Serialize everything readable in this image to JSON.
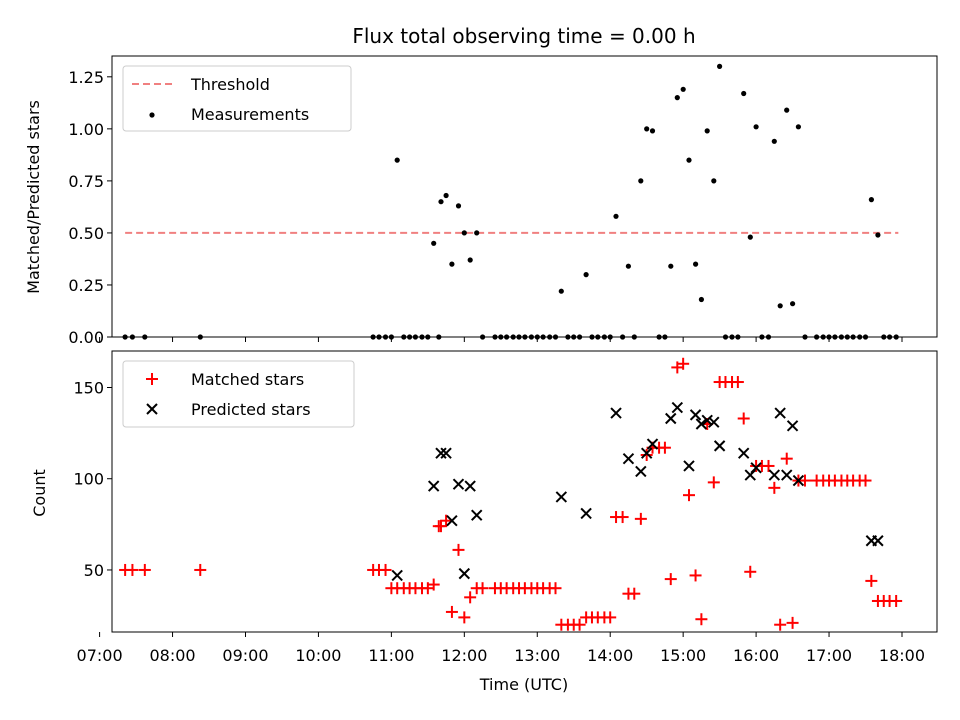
{
  "chart_data": [
    {
      "type": "scatter",
      "title": "Flux total observing time = 0.00 h",
      "xlabel": "",
      "ylabel": "Matched/Predicted stars",
      "ylim": [
        0,
        1.35
      ],
      "yticks": [
        "0.00",
        "0.25",
        "0.50",
        "0.75",
        "1.00",
        "1.25"
      ],
      "ytick_values": [
        0,
        0.25,
        0.5,
        0.75,
        1.0,
        1.25
      ],
      "legend_position": "top-left",
      "threshold": {
        "name": "Threshold",
        "value": 0.5,
        "x_start": 7.35,
        "x_end": 17.95,
        "color": "#f08080"
      },
      "series": [
        {
          "name": "Measurements",
          "marker": "dot",
          "color": "#000000",
          "x": [
            7.35,
            7.45,
            7.62,
            8.38,
            10.75,
            10.83,
            10.92,
            11.0,
            11.08,
            11.17,
            11.25,
            11.33,
            11.42,
            11.5,
            11.58,
            11.65,
            11.68,
            11.75,
            11.83,
            11.92,
            12.0,
            12.08,
            12.17,
            12.25,
            12.42,
            12.5,
            12.58,
            12.67,
            12.75,
            12.83,
            12.92,
            13.0,
            13.08,
            13.17,
            13.25,
            13.33,
            13.42,
            13.5,
            13.58,
            13.67,
            13.75,
            13.83,
            13.92,
            14.0,
            14.08,
            14.17,
            14.25,
            14.33,
            14.42,
            14.5,
            14.58,
            14.67,
            14.75,
            14.83,
            14.92,
            15.0,
            15.08,
            15.17,
            15.25,
            15.33,
            15.42,
            15.5,
            15.58,
            15.67,
            15.75,
            15.83,
            15.92,
            16.0,
            16.08,
            16.17,
            16.25,
            16.33,
            16.42,
            16.5,
            16.58,
            16.67,
            16.83,
            16.92,
            17.0,
            17.08,
            17.17,
            17.25,
            17.33,
            17.42,
            17.5,
            17.58,
            17.67,
            17.75,
            17.83,
            17.92
          ],
          "y": [
            0,
            0,
            0,
            0,
            0,
            0,
            0,
            0,
            0.85,
            0,
            0,
            0,
            0,
            0,
            0.45,
            0,
            0.65,
            0.68,
            0.35,
            0.63,
            0.5,
            0.37,
            0.5,
            0,
            0,
            0,
            0,
            0,
            0,
            0,
            0,
            0,
            0,
            0,
            0,
            0.22,
            0,
            0,
            0,
            0.3,
            0,
            0,
            0,
            0,
            0.58,
            0,
            0.34,
            0,
            0.75,
            1.0,
            0.99,
            0,
            0,
            0.34,
            1.15,
            1.19,
            0.85,
            0.35,
            0.18,
            0.99,
            0.75,
            1.3,
            0,
            0,
            0,
            1.17,
            0.48,
            1.01,
            0,
            0,
            0.94,
            0.15,
            1.09,
            0.16,
            1.01,
            0,
            0,
            0,
            0,
            0,
            0,
            0,
            0,
            0,
            0,
            0.66,
            0.49,
            0,
            0,
            0
          ]
        }
      ]
    },
    {
      "type": "scatter",
      "title": "",
      "xlabel": "Time (UTC)",
      "ylabel": "Count",
      "ylim": [
        16,
        170
      ],
      "yticks": [
        "50",
        "100",
        "150"
      ],
      "ytick_values": [
        50,
        100,
        150
      ],
      "xlim": [
        7.17,
        18.48
      ],
      "xticks": [
        "07:00",
        "08:00",
        "09:00",
        "10:00",
        "11:00",
        "12:00",
        "13:00",
        "14:00",
        "15:00",
        "16:00",
        "17:00",
        "18:00"
      ],
      "xtick_values": [
        7,
        8,
        9,
        10,
        11,
        12,
        13,
        14,
        15,
        16,
        17,
        18
      ],
      "legend_position": "top-left",
      "series": [
        {
          "name": "Matched stars",
          "marker": "plus",
          "color": "#ff0000",
          "x": [
            7.35,
            7.45,
            7.62,
            8.38,
            10.75,
            10.83,
            10.92,
            11.0,
            11.08,
            11.17,
            11.25,
            11.33,
            11.42,
            11.5,
            11.58,
            11.65,
            11.68,
            11.75,
            11.83,
            11.92,
            12.0,
            12.08,
            12.17,
            12.25,
            12.42,
            12.5,
            12.58,
            12.67,
            12.75,
            12.83,
            12.92,
            13.0,
            13.08,
            13.17,
            13.25,
            13.33,
            13.42,
            13.5,
            13.58,
            13.67,
            13.75,
            13.83,
            13.92,
            14.0,
            14.08,
            14.17,
            14.25,
            14.33,
            14.42,
            14.5,
            14.58,
            14.67,
            14.75,
            14.83,
            14.92,
            15.0,
            15.08,
            15.17,
            15.25,
            15.33,
            15.42,
            15.5,
            15.58,
            15.67,
            15.75,
            15.83,
            15.92,
            16.0,
            16.08,
            16.17,
            16.25,
            16.33,
            16.42,
            16.5,
            16.58,
            16.67,
            16.83,
            16.92,
            17.0,
            17.08,
            17.17,
            17.25,
            17.33,
            17.42,
            17.5,
            17.58,
            17.67,
            17.75,
            17.83,
            17.92
          ],
          "y": [
            50,
            50,
            50,
            50,
            50,
            50,
            50,
            40,
            40,
            40,
            40,
            40,
            40,
            40,
            42,
            74,
            74,
            77,
            27,
            61,
            24,
            35,
            40,
            40,
            40,
            40,
            40,
            40,
            40,
            40,
            40,
            40,
            40,
            40,
            40,
            20,
            20,
            20,
            20,
            24,
            24,
            24,
            24,
            24,
            79,
            79,
            37,
            37,
            78,
            113,
            117,
            117,
            117,
            45,
            161,
            163,
            91,
            47,
            23,
            130,
            98,
            153,
            153,
            153,
            153,
            133,
            49,
            107,
            107,
            107,
            95,
            20,
            111,
            21,
            99,
            99,
            99,
            99,
            99,
            99,
            99,
            99,
            99,
            99,
            99,
            44,
            33,
            33,
            33,
            33
          ]
        },
        {
          "name": "Predicted stars",
          "marker": "x",
          "color": "#000000",
          "x": [
            11.08,
            11.58,
            11.68,
            11.75,
            11.83,
            11.92,
            12.0,
            12.08,
            12.17,
            13.33,
            13.67,
            14.08,
            14.25,
            14.42,
            14.5,
            14.58,
            14.83,
            14.92,
            15.08,
            15.17,
            15.25,
            15.33,
            15.42,
            15.5,
            15.83,
            15.92,
            16.0,
            16.25,
            16.33,
            16.42,
            16.5,
            16.58,
            17.58,
            17.67
          ],
          "y": [
            47,
            96,
            114,
            114,
            77,
            97,
            48,
            96,
            80,
            90,
            81,
            136,
            111,
            104,
            114,
            119,
            133,
            139,
            107,
            135,
            130,
            132,
            131,
            118,
            114,
            102,
            106,
            102,
            136,
            102,
            129,
            99,
            66,
            66
          ]
        }
      ]
    }
  ]
}
